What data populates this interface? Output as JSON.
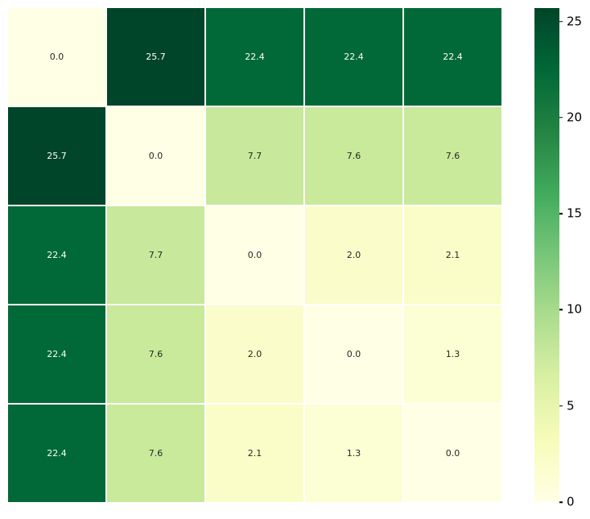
{
  "chart_data": {
    "type": "heatmap",
    "title": "",
    "xlabel": "",
    "ylabel": "",
    "rows": 5,
    "cols": 5,
    "matrix": [
      [
        0.0,
        25.7,
        22.4,
        22.4,
        22.4
      ],
      [
        25.7,
        0.0,
        7.7,
        7.6,
        7.6
      ],
      [
        22.4,
        7.7,
        0.0,
        2.0,
        2.1
      ],
      [
        22.4,
        7.6,
        2.0,
        0.0,
        1.3
      ],
      [
        22.4,
        7.6,
        2.1,
        1.3,
        0.0
      ]
    ],
    "vmin": 0,
    "vmax": 25.7,
    "annot_decimals": 1,
    "annot_color_light": "#ffffff",
    "annot_color_dark": "#262626",
    "grid_line_color": "#ffffff",
    "background_color": "#ffffff",
    "colormap": {
      "name": "YlGn",
      "stops": [
        "#ffffe5",
        "#f7fcb9",
        "#d9f0a3",
        "#addd8e",
        "#78c679",
        "#41ab5d",
        "#238443",
        "#006837",
        "#004529"
      ]
    },
    "colorbar": {
      "position": "right",
      "ticks": [
        0,
        5,
        10,
        15,
        20,
        25
      ],
      "tick_color": "#000000",
      "label_color": "#000000"
    }
  }
}
